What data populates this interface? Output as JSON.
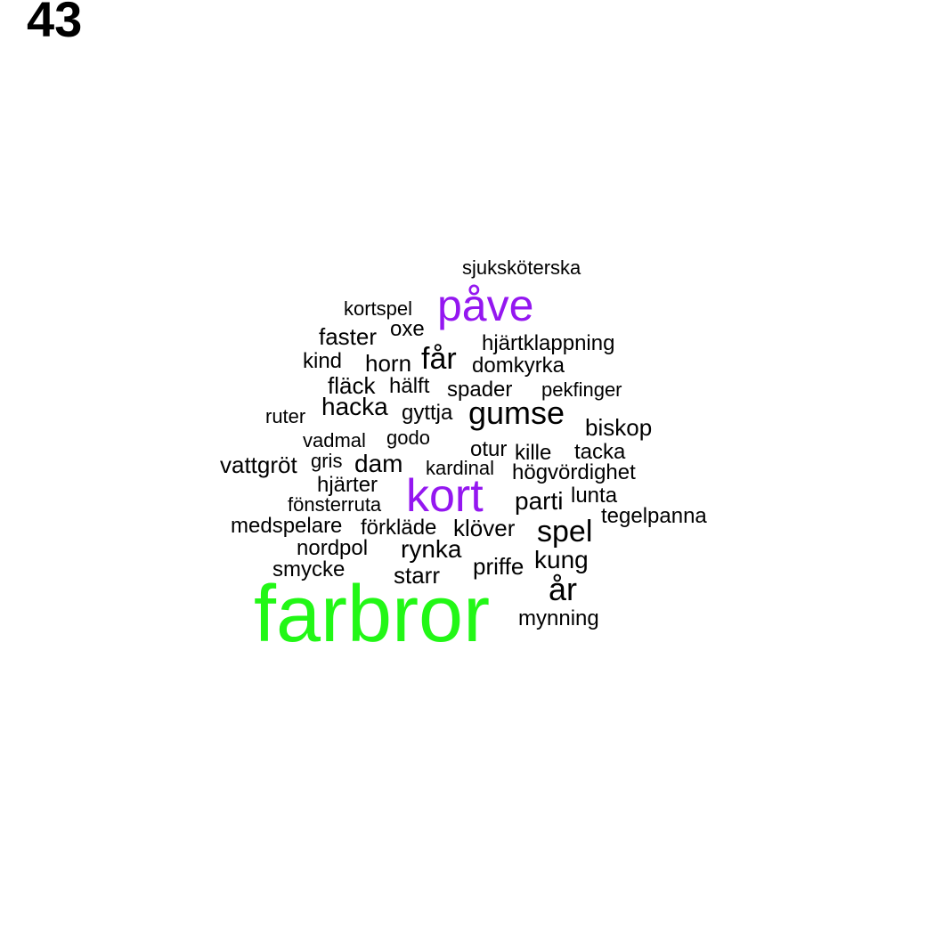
{
  "number_label": "43",
  "colors": {
    "default": "#000000",
    "purple": "#9417f0",
    "green": "#22f716"
  },
  "words": [
    {
      "text": "sjuksköterska",
      "color": "default"
    },
    {
      "text": "påve",
      "color": "purple"
    },
    {
      "text": "kortspel",
      "color": "default"
    },
    {
      "text": "oxe",
      "color": "default"
    },
    {
      "text": "faster",
      "color": "default"
    },
    {
      "text": "hjärtklappning",
      "color": "default"
    },
    {
      "text": "kind",
      "color": "default"
    },
    {
      "text": "horn",
      "color": "default"
    },
    {
      "text": "får",
      "color": "default"
    },
    {
      "text": "domkyrka",
      "color": "default"
    },
    {
      "text": "fläck",
      "color": "default"
    },
    {
      "text": "hälft",
      "color": "default"
    },
    {
      "text": "spader",
      "color": "default"
    },
    {
      "text": "pekfinger",
      "color": "default"
    },
    {
      "text": "ruter",
      "color": "default"
    },
    {
      "text": "hacka",
      "color": "default"
    },
    {
      "text": "gyttja",
      "color": "default"
    },
    {
      "text": "gumse",
      "color": "default"
    },
    {
      "text": "biskop",
      "color": "default"
    },
    {
      "text": "vadmal",
      "color": "default"
    },
    {
      "text": "godo",
      "color": "default"
    },
    {
      "text": "otur",
      "color": "default"
    },
    {
      "text": "kille",
      "color": "default"
    },
    {
      "text": "tacka",
      "color": "default"
    },
    {
      "text": "vattgröt",
      "color": "default"
    },
    {
      "text": "gris",
      "color": "default"
    },
    {
      "text": "dam",
      "color": "default"
    },
    {
      "text": "kardinal",
      "color": "default"
    },
    {
      "text": "högvördighet",
      "color": "default"
    },
    {
      "text": "hjärter",
      "color": "default"
    },
    {
      "text": "kort",
      "color": "purple"
    },
    {
      "text": "parti",
      "color": "default"
    },
    {
      "text": "lunta",
      "color": "default"
    },
    {
      "text": "fönsterruta",
      "color": "default"
    },
    {
      "text": "tegelpanna",
      "color": "default"
    },
    {
      "text": "medspelare",
      "color": "default"
    },
    {
      "text": "förkläde",
      "color": "default"
    },
    {
      "text": "klöver",
      "color": "default"
    },
    {
      "text": "spel",
      "color": "default"
    },
    {
      "text": "nordpol",
      "color": "default"
    },
    {
      "text": "rynka",
      "color": "default"
    },
    {
      "text": "kung",
      "color": "default"
    },
    {
      "text": "smycke",
      "color": "default"
    },
    {
      "text": "priffe",
      "color": "default"
    },
    {
      "text": "starr",
      "color": "default"
    },
    {
      "text": "år",
      "color": "default"
    },
    {
      "text": "farbror",
      "color": "green"
    },
    {
      "text": "mynning",
      "color": "default"
    }
  ]
}
